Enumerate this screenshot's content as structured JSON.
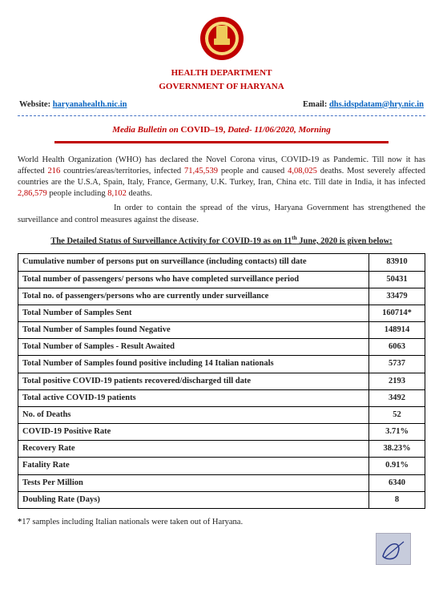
{
  "emblem": {
    "fill": "#c00000",
    "inner": "#f7d97a",
    "size": 60
  },
  "header": {
    "line1": "HEALTH DEPARTMENT",
    "line2": "GOVERNMENT OF HARYANA"
  },
  "contacts": {
    "website_label": "Website: ",
    "website_link": "haryanahealth.nic.in",
    "email_label": "Email: ",
    "email_link": "dhs.idspdatam@hry.nic.in"
  },
  "bulletin": {
    "prefix_italic": "Media Bulletin on ",
    "bold": "COVID–19,",
    "suffix_italic": " Dated- 11/06/2020, Morning"
  },
  "para1": {
    "t1": "World Health Organization (WHO) has declared the Novel Corona virus, COVID-19 as Pandemic. Till now it has affected ",
    "r1": "216",
    "t2": " countries/areas/territories, infected ",
    "r2": "71,45,539",
    "t3": " people and caused ",
    "r3": "4,08,025",
    "t4": " deaths. Most severely affected countries are the U.S.A, Spain, Italy, France, Germany, U.K. Turkey, Iran, China etc. Till date in India, it has infected ",
    "r4": "2,86,579",
    "t5": " people including ",
    "r5": "8,102",
    "t6": " deaths."
  },
  "para2": "In order to contain the spread of the virus, Haryana Government has strengthened the surveillance and control measures against the disease.",
  "section_title_a": "The Detailed Status of Surveillance Activity for COVID-19 as on 11",
  "section_title_sup": "th",
  "section_title_b": " June, 2020 is given below:",
  "rows": [
    {
      "label": "Cumulative number of persons put on surveillance (including contacts) till date",
      "value": "83910"
    },
    {
      "label": "Total number of passengers/ persons who have completed surveillance period",
      "value": "50431"
    },
    {
      "label": "Total no. of passengers/persons who are currently under surveillance",
      "value": "33479"
    },
    {
      "label": "Total Number of Samples Sent",
      "value": "160714*"
    },
    {
      "label": "Total Number of Samples found Negative",
      "value": "148914"
    },
    {
      "label": "Total Number of Samples - Result Awaited",
      "value": "6063"
    },
    {
      "label": "Total Number of Samples found positive including 14 Italian nationals",
      "value": "5737"
    },
    {
      "label": "Total positive COVID-19 patients recovered/discharged till date",
      "value": "2193"
    },
    {
      "label": "Total active COVID-19 patients",
      "value": "3492"
    },
    {
      "label": "No. of Deaths",
      "value": "52"
    },
    {
      "label": "COVID-19 Positive Rate",
      "value": "3.71%"
    },
    {
      "label": "Recovery Rate",
      "value": "38.23%"
    },
    {
      "label": "Fatality Rate",
      "value": "0.91%"
    },
    {
      "label": "Tests Per Million",
      "value": "6340"
    },
    {
      "label": "Doubling Rate (Days)",
      "value": "8"
    }
  ],
  "footnote_bullet": "*",
  "footnote": "17 samples including Italian nationals were taken out of Haryana."
}
